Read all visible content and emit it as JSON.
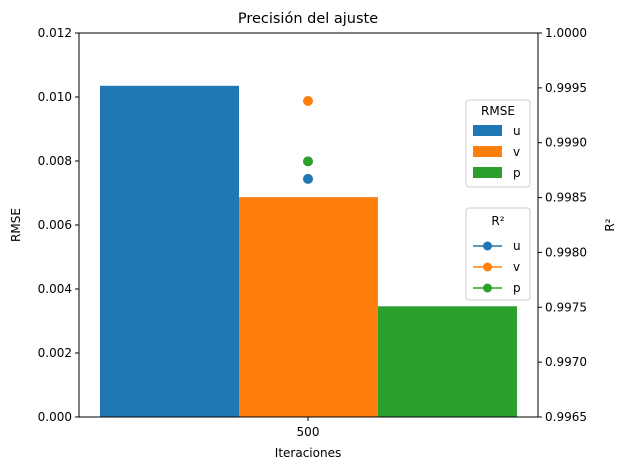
{
  "chart_data": {
    "type": "bar",
    "title": "Precisión del ajuste",
    "xlabel": "Iteraciones",
    "ylabel": "RMSE",
    "y2label": "R²",
    "categories": [
      "500"
    ],
    "ylim": [
      0,
      0.012
    ],
    "y2lim": [
      0.9965,
      1.0
    ],
    "yticks": [
      "0.000",
      "0.002",
      "0.004",
      "0.006",
      "0.008",
      "0.010",
      "0.012"
    ],
    "y2ticks": [
      "0.9965",
      "0.9970",
      "0.9975",
      "0.9980",
      "0.9985",
      "0.9990",
      "0.9995",
      "1.0000"
    ],
    "bar_series": [
      {
        "name": "u",
        "values": [
          0.01035
        ],
        "color": "#1f77b4"
      },
      {
        "name": "v",
        "values": [
          0.00687
        ],
        "color": "#ff7f0e"
      },
      {
        "name": "p",
        "values": [
          0.00346
        ],
        "color": "#2ca02c"
      }
    ],
    "r2_series": [
      {
        "name": "u",
        "values": [
          0.99867
        ],
        "color": "#1f77b4"
      },
      {
        "name": "v",
        "values": [
          0.99938
        ],
        "color": "#ff7f0e"
      },
      {
        "name": "p",
        "values": [
          0.99883
        ],
        "color": "#2ca02c"
      }
    ],
    "legend_rmse_title": "RMSE",
    "legend_r2_title": "R²",
    "grid": false
  }
}
